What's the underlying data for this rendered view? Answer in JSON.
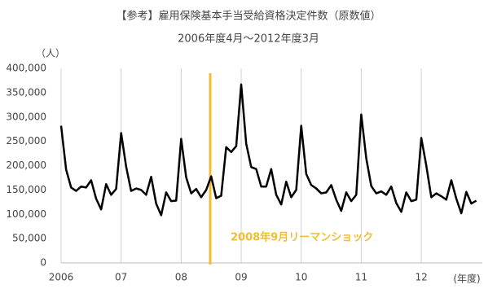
{
  "chart_data": {
    "type": "line",
    "title": "【参考】雇用保険基本手当受給資格決定件数（原数値）",
    "subtitle": "2006年度4月～2012年度3月",
    "y_unit": "（人）",
    "x_label": "(年度)",
    "annotation": "2008年9月リーマンショック",
    "annotation_color": "#f0be32",
    "categories": [
      "2006",
      null,
      null,
      null,
      null,
      null,
      null,
      null,
      null,
      null,
      null,
      null,
      "07",
      null,
      null,
      null,
      null,
      null,
      null,
      null,
      null,
      null,
      null,
      null,
      "08",
      null,
      null,
      null,
      null,
      null,
      null,
      null,
      null,
      null,
      null,
      null,
      "09",
      null,
      null,
      null,
      null,
      null,
      null,
      null,
      null,
      null,
      null,
      null,
      "10",
      null,
      null,
      null,
      null,
      null,
      null,
      null,
      null,
      null,
      null,
      null,
      "11",
      null,
      null,
      null,
      null,
      null,
      null,
      null,
      null,
      null,
      null,
      null,
      "12",
      null,
      null,
      null,
      null,
      null,
      null,
      null,
      null,
      null,
      null,
      null
    ],
    "series": [
      {
        "color": "#000000",
        "values": [
          282000,
          192000,
          155000,
          148000,
          157000,
          155000,
          170000,
          132000,
          110000,
          162000,
          140000,
          152000,
          267000,
          198000,
          148000,
          153000,
          150000,
          140000,
          177000,
          122000,
          98000,
          145000,
          127000,
          128000,
          255000,
          176000,
          143000,
          152000,
          135000,
          150000,
          178000,
          133000,
          138000,
          238000,
          228000,
          240000,
          367000,
          245000,
          197000,
          193000,
          157000,
          157000,
          193000,
          140000,
          120000,
          167000,
          135000,
          150000,
          282000,
          183000,
          160000,
          153000,
          143000,
          145000,
          160000,
          130000,
          107000,
          145000,
          127000,
          140000,
          305000,
          215000,
          158000,
          143000,
          147000,
          140000,
          157000,
          123000,
          105000,
          145000,
          127000,
          130000,
          257000,
          200000,
          135000,
          143000,
          137000,
          130000,
          170000,
          132000,
          102000,
          146000,
          122000,
          128000
        ]
      }
    ],
    "ylim": [
      0,
      400000
    ],
    "yticks": [
      0,
      {
        "value": 50000,
        "label": "50,000"
      },
      {
        "value": 100000,
        "label": "100,000"
      },
      {
        "value": 150000,
        "label": "150,000"
      },
      {
        "value": 200000,
        "label": "200,000"
      },
      {
        "value": 250000,
        "label": "250,000"
      },
      {
        "value": 300000,
        "label": "300,000"
      },
      {
        "value": 350000,
        "label": "350,000"
      },
      {
        "value": 400000,
        "label": "400,000"
      }
    ],
    "grid": "x"
  }
}
